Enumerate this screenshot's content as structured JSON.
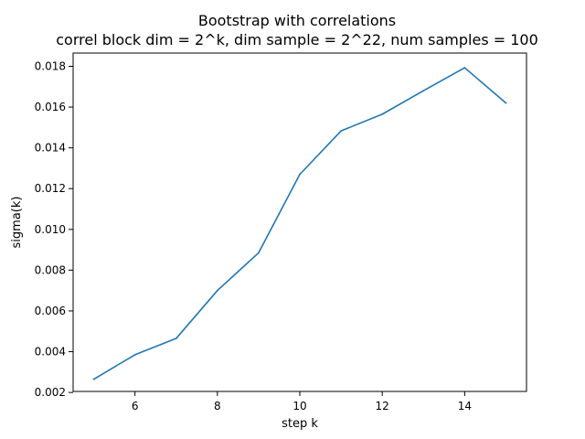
{
  "chart_data": {
    "type": "line",
    "title": "Bootstrap with correlations",
    "subtitle": "correl block dim = 2^k, dim sample = 2^22, num samples = 100",
    "xlabel": "step k",
    "ylabel": "sigma(k)",
    "xlim": [
      4.5,
      15.5
    ],
    "ylim": [
      0.00205,
      0.01865
    ],
    "x_ticks": [
      6,
      8,
      10,
      12,
      14
    ],
    "x_tick_labels": [
      "6",
      "8",
      "10",
      "12",
      "14"
    ],
    "y_ticks": [
      0.002,
      0.004,
      0.006,
      0.008,
      0.01,
      0.012,
      0.014,
      0.016,
      0.018
    ],
    "y_tick_labels": [
      "0.002",
      "0.004",
      "0.006",
      "0.008",
      "0.010",
      "0.012",
      "0.014",
      "0.016",
      "0.018"
    ],
    "grid": false,
    "legend": "none",
    "series": [
      {
        "color": "#1f77b4",
        "x": [
          5,
          6,
          7,
          8,
          9,
          10,
          11,
          12,
          13,
          14,
          15
        ],
        "y": [
          0.00265,
          0.00385,
          0.00465,
          0.007,
          0.00885,
          0.0127,
          0.01483,
          0.01565,
          0.0168,
          0.01793,
          0.0162
        ]
      }
    ]
  }
}
